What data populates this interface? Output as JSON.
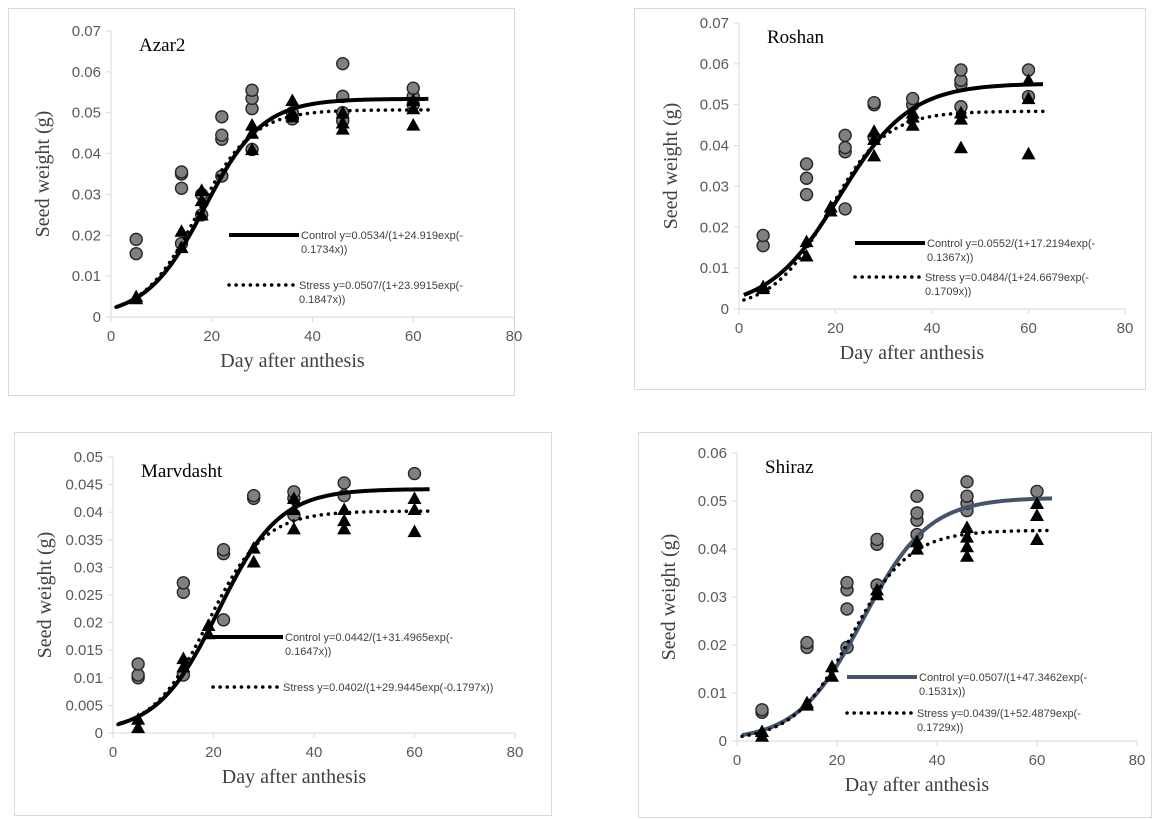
{
  "chart_data": [
    {
      "type": "scatter",
      "title": "Azar2",
      "xlabel": "Day after anthesis",
      "ylabel": "Seed weight (g)",
      "xlim": [
        0,
        80
      ],
      "ylim": [
        0,
        0.07
      ],
      "xticks": [
        "0",
        "20",
        "40",
        "60",
        "80"
      ],
      "yticks": [
        "0",
        "0.01",
        "0.02",
        "0.03",
        "0.04",
        "0.05",
        "0.06",
        "0.07"
      ],
      "grid": false,
      "series": [
        {
          "legend": [
            "Control y=0.0534/(1+24.919exp(-",
            "0.1734x))"
          ],
          "marker": "circle",
          "line": "solid",
          "color": "#000000",
          "fit": {
            "a": 0.0534,
            "b": 24.919,
            "c": 0.1734
          },
          "points": [
            [
              5,
              0.0155
            ],
            [
              5,
              0.019
            ],
            [
              14,
              0.018
            ],
            [
              14,
              0.0315
            ],
            [
              14,
              0.035
            ],
            [
              14,
              0.0355
            ],
            [
              18,
              0.025
            ],
            [
              18,
              0.03
            ],
            [
              22,
              0.0345
            ],
            [
              22,
              0.0435
            ],
            [
              22,
              0.0445
            ],
            [
              22,
              0.049
            ],
            [
              28,
              0.041
            ],
            [
              28,
              0.051
            ],
            [
              28,
              0.0535
            ],
            [
              28,
              0.0555
            ],
            [
              36,
              0.0485
            ],
            [
              36,
              0.05
            ],
            [
              46,
              0.048
            ],
            [
              46,
              0.05
            ],
            [
              46,
              0.054
            ],
            [
              46,
              0.062
            ],
            [
              60,
              0.052
            ],
            [
              60,
              0.054
            ],
            [
              60,
              0.056
            ]
          ]
        },
        {
          "legend": [
            "Stress y=0.0507/(1+23.9915exp(-",
            "0.1847x))"
          ],
          "marker": "triangle",
          "line": "dotted",
          "color": "#000000",
          "fit": {
            "a": 0.0507,
            "b": 23.9915,
            "c": 0.1847
          },
          "points": [
            [
              5,
              0.0045
            ],
            [
              5,
              0.005
            ],
            [
              14,
              0.017
            ],
            [
              14,
              0.021
            ],
            [
              18,
              0.025
            ],
            [
              18,
              0.0285
            ],
            [
              18,
              0.031
            ],
            [
              28,
              0.041
            ],
            [
              28,
              0.045
            ],
            [
              28,
              0.047
            ],
            [
              36,
              0.049
            ],
            [
              36,
              0.05
            ],
            [
              36,
              0.053
            ],
            [
              46,
              0.046
            ],
            [
              46,
              0.0475
            ],
            [
              46,
              0.05
            ],
            [
              60,
              0.047
            ],
            [
              60,
              0.051
            ],
            [
              60,
              0.053
            ]
          ]
        }
      ]
    },
    {
      "type": "scatter",
      "title": "Roshan",
      "xlabel": "Day after anthesis",
      "ylabel": "Seed weight (g)",
      "xlim": [
        0,
        80
      ],
      "ylim": [
        0,
        0.07
      ],
      "xticks": [
        "0",
        "20",
        "40",
        "60",
        "80"
      ],
      "yticks": [
        "0",
        "0.01",
        "0.02",
        "0.03",
        "0.04",
        "0.05",
        "0.06",
        "0.07"
      ],
      "grid": false,
      "series": [
        {
          "legend": [
            "Control y=0.0552/(1+17.2194exp(-",
            "0.1367x))"
          ],
          "marker": "circle",
          "line": "solid",
          "color": "#000000",
          "fit": {
            "a": 0.0552,
            "b": 17.2194,
            "c": 0.1367
          },
          "points": [
            [
              5,
              0.0155
            ],
            [
              5,
              0.018
            ],
            [
              14,
              0.028
            ],
            [
              14,
              0.032
            ],
            [
              14,
              0.0355
            ],
            [
              22,
              0.0245
            ],
            [
              22,
              0.0385
            ],
            [
              22,
              0.0395
            ],
            [
              22,
              0.0425
            ],
            [
              28,
              0.042
            ],
            [
              28,
              0.05
            ],
            [
              28,
              0.0505
            ],
            [
              36,
              0.05
            ],
            [
              36,
              0.0515
            ],
            [
              46,
              0.0495
            ],
            [
              46,
              0.055
            ],
            [
              46,
              0.056
            ],
            [
              46,
              0.0585
            ],
            [
              60,
              0.052
            ],
            [
              60,
              0.0585
            ]
          ]
        },
        {
          "legend": [
            "Stress y=0.0484/(1+24.6679exp(-",
            "0.1709x))"
          ],
          "marker": "triangle",
          "line": "dotted",
          "color": "#000000",
          "fit": {
            "a": 0.0484,
            "b": 24.6679,
            "c": 0.1709
          },
          "points": [
            [
              5,
              0.005
            ],
            [
              5,
              0.0055
            ],
            [
              14,
              0.013
            ],
            [
              14,
              0.0165
            ],
            [
              19,
              0.024
            ],
            [
              19,
              0.025
            ],
            [
              28,
              0.0375
            ],
            [
              28,
              0.0415
            ],
            [
              28,
              0.0435
            ],
            [
              36,
              0.045
            ],
            [
              36,
              0.047
            ],
            [
              36,
              0.048
            ],
            [
              46,
              0.0395
            ],
            [
              46,
              0.0465
            ],
            [
              46,
              0.048
            ],
            [
              60,
              0.038
            ],
            [
              60,
              0.0515
            ],
            [
              60,
              0.056
            ]
          ]
        }
      ]
    },
    {
      "type": "scatter",
      "title": "Marvdasht",
      "xlabel": "Day after anthesis",
      "ylabel": "Seed weight (g)",
      "xlim": [
        0,
        80
      ],
      "ylim": [
        0,
        0.05
      ],
      "xticks": [
        "0",
        "20",
        "40",
        "60",
        "80"
      ],
      "yticks": [
        "0",
        "0.005",
        "0.01",
        "0.015",
        "0.02",
        "0.025",
        "0.03",
        "0.035",
        "0.04",
        "0.045",
        "0.05"
      ],
      "grid": false,
      "series": [
        {
          "legend": [
            "Control y=0.0442/(1+31.4965exp(-",
            "0.1647x))"
          ],
          "marker": "circle",
          "line": "solid",
          "color": "#000000",
          "fit": {
            "a": 0.0442,
            "b": 31.4965,
            "c": 0.1647
          },
          "points": [
            [
              5,
              0.01
            ],
            [
              5,
              0.0105
            ],
            [
              5,
              0.0125
            ],
            [
              14,
              0.0105
            ],
            [
              14,
              0.0255
            ],
            [
              14,
              0.0272
            ],
            [
              22,
              0.0205
            ],
            [
              22,
              0.0325
            ],
            [
              22,
              0.0332
            ],
            [
              28,
              0.0425
            ],
            [
              28,
              0.043
            ],
            [
              36,
              0.0395
            ],
            [
              36,
              0.0425
            ],
            [
              36,
              0.0437
            ],
            [
              46,
              0.043
            ],
            [
              46,
              0.0453
            ],
            [
              60,
              0.047
            ]
          ]
        },
        {
          "legend": [
            "Stress y=0.0402/(1+29.9445exp(-0.1797x))"
          ],
          "marker": "triangle",
          "line": "dotted",
          "color": "#000000",
          "fit": {
            "a": 0.0402,
            "b": 29.9445,
            "c": 0.1797
          },
          "points": [
            [
              5,
              0.001
            ],
            [
              5,
              0.0025
            ],
            [
              14,
              0.012
            ],
            [
              14,
              0.0135
            ],
            [
              19,
              0.018
            ],
            [
              19,
              0.0195
            ],
            [
              28,
              0.031
            ],
            [
              28,
              0.0335
            ],
            [
              36,
              0.037
            ],
            [
              36,
              0.0405
            ],
            [
              36,
              0.0425
            ],
            [
              46,
              0.037
            ],
            [
              46,
              0.0385
            ],
            [
              46,
              0.0405
            ],
            [
              60,
              0.0365
            ],
            [
              60,
              0.0405
            ],
            [
              60,
              0.0425
            ]
          ]
        }
      ]
    },
    {
      "type": "scatter",
      "title": "Shiraz",
      "xlabel": "Day after anthesis",
      "ylabel": "Seed weight (g)",
      "xlim": [
        0,
        80
      ],
      "ylim": [
        0,
        0.06
      ],
      "xticks": [
        "0",
        "20",
        "40",
        "60",
        "80"
      ],
      "yticks": [
        "0",
        "0.01",
        "0.02",
        "0.03",
        "0.04",
        "0.05",
        "0.06"
      ],
      "grid": false,
      "series": [
        {
          "legend": [
            "Control y=0.0507/(1+47.3462exp(-",
            "0.1531x))"
          ],
          "marker": "circle",
          "line": "solid",
          "color": "#44546a",
          "fit": {
            "a": 0.0507,
            "b": 47.3462,
            "c": 0.1531
          },
          "points": [
            [
              5,
              0.006
            ],
            [
              5,
              0.0065
            ],
            [
              14,
              0.0195
            ],
            [
              14,
              0.0205
            ],
            [
              22,
              0.0195
            ],
            [
              22,
              0.0275
            ],
            [
              22,
              0.0315
            ],
            [
              22,
              0.033
            ],
            [
              28,
              0.0325
            ],
            [
              28,
              0.041
            ],
            [
              28,
              0.042
            ],
            [
              36,
              0.043
            ],
            [
              36,
              0.046
            ],
            [
              36,
              0.0475
            ],
            [
              36,
              0.051
            ],
            [
              46,
              0.048
            ],
            [
              46,
              0.0495
            ],
            [
              46,
              0.051
            ],
            [
              46,
              0.054
            ],
            [
              60,
              0.052
            ]
          ]
        },
        {
          "legend": [
            "Stress y=0.0439/(1+52.4879exp(-",
            "0.1729x))"
          ],
          "marker": "triangle",
          "line": "dotted",
          "color": "#000000",
          "fit": {
            "a": 0.0439,
            "b": 52.4879,
            "c": 0.1729
          },
          "points": [
            [
              5,
              0.001
            ],
            [
              5,
              0.002
            ],
            [
              14,
              0.0075
            ],
            [
              14,
              0.008
            ],
            [
              19,
              0.0135
            ],
            [
              19,
              0.0155
            ],
            [
              28,
              0.0305
            ],
            [
              28,
              0.0315
            ],
            [
              36,
              0.04
            ],
            [
              36,
              0.0415
            ],
            [
              46,
              0.0385
            ],
            [
              46,
              0.0405
            ],
            [
              46,
              0.0425
            ],
            [
              46,
              0.0445
            ],
            [
              60,
              0.042
            ],
            [
              60,
              0.047
            ],
            [
              60,
              0.0495
            ]
          ]
        }
      ]
    }
  ]
}
